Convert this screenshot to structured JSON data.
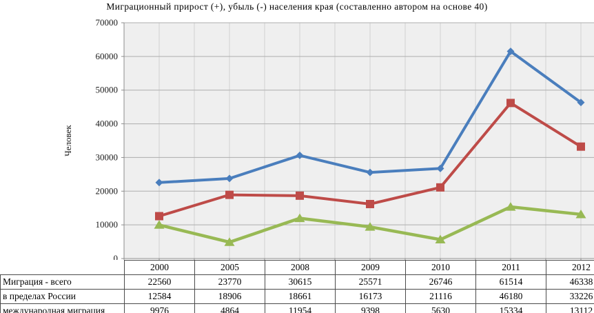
{
  "title": "Миграционный прирост (+), убыль (-) населения края (составленно автором на основе 40)",
  "chart_data": {
    "type": "line",
    "categories": [
      "2000",
      "2005",
      "2008",
      "2009",
      "2010",
      "2011",
      "2012"
    ],
    "series": [
      {
        "name": "Миграция - всего",
        "marker": "diamond",
        "color": "#4A7EBD",
        "values": [
          22560,
          23770,
          30615,
          25571,
          26746,
          61514,
          46338
        ]
      },
      {
        "name": "в пределах России",
        "marker": "square",
        "color": "#BE4B48",
        "values": [
          12584,
          18906,
          18661,
          16173,
          21116,
          46180,
          33226
        ]
      },
      {
        "name": "международная миграция",
        "marker": "triangle",
        "color": "#98B954",
        "values": [
          9976,
          4864,
          11954,
          9398,
          5630,
          15334,
          13112
        ]
      }
    ],
    "xlabel": "",
    "ylabel": "Человек",
    "ylim": [
      0,
      70000
    ],
    "ytick_step": 10000,
    "yticks": [
      "0",
      "10000",
      "20000",
      "30000",
      "40000",
      "50000",
      "60000",
      "70000"
    ],
    "grid": true,
    "legend_position": "none",
    "plot_bg_color": "#EFEFEF",
    "h_gridline_color": "#ADADAD",
    "v_gridline_color": "#D2D2D2",
    "axis_color": "#8C8C8C"
  },
  "table": {
    "corner_label": "",
    "border_color": "#4A4A4A"
  }
}
